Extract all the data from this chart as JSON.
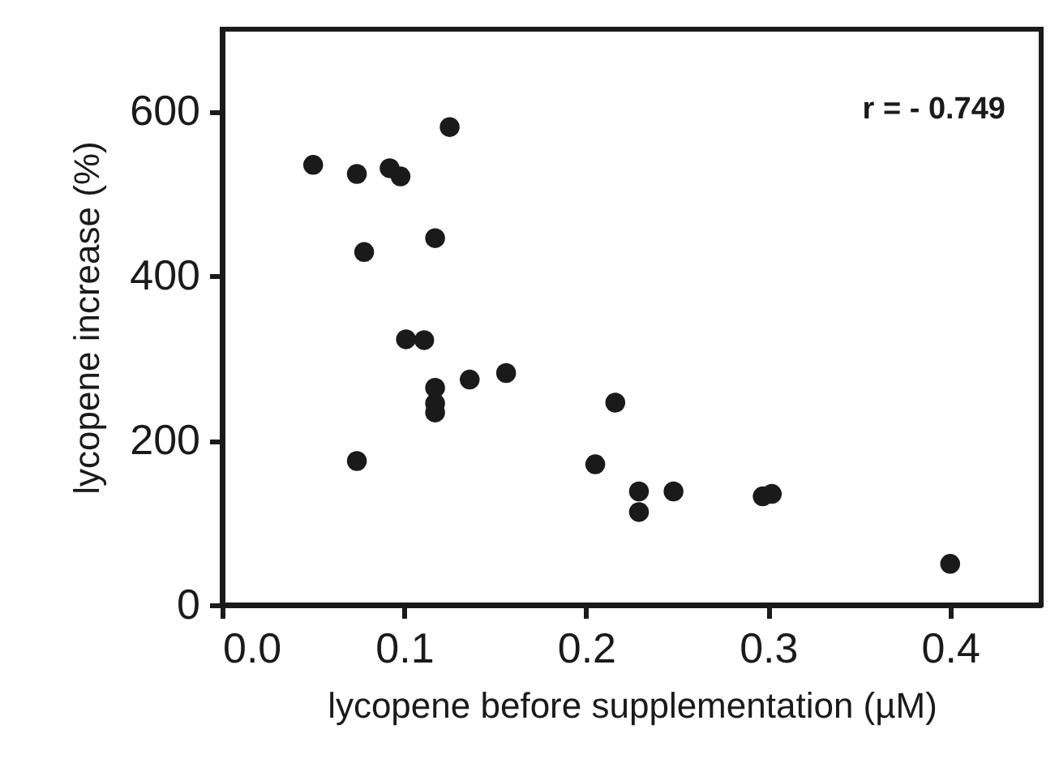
{
  "chart_data": {
    "type": "scatter",
    "xlabel": "lycopene before supplementation (µM)",
    "ylabel": "lycopene increase (%)",
    "x": [
      0.05,
      0.074,
      0.092,
      0.098,
      0.125,
      0.117,
      0.078,
      0.101,
      0.111,
      0.117,
      0.117,
      0.117,
      0.136,
      0.156,
      0.074,
      0.216,
      0.205,
      0.229,
      0.229,
      0.248,
      0.297,
      0.302,
      0.4
    ],
    "series": [
      {
        "color": "#1a1a1a",
        "values": [
          535,
          524,
          531,
          521,
          581,
          446,
          429,
          323,
          322,
          264,
          245,
          234,
          274,
          282,
          175,
          246,
          171,
          138,
          113,
          138,
          132,
          135,
          50
        ]
      }
    ],
    "xlim": [
      0,
      0.45
    ],
    "xticks": [
      {
        "value": 0,
        "label": "0.0"
      },
      0.1,
      0.2,
      0.3,
      0.4
    ],
    "ylim": [
      0,
      700
    ],
    "yticks": [
      0,
      200,
      400,
      600
    ],
    "annotations": [
      "r = - 0.749"
    ],
    "grid": false,
    "marker": "circle"
  }
}
